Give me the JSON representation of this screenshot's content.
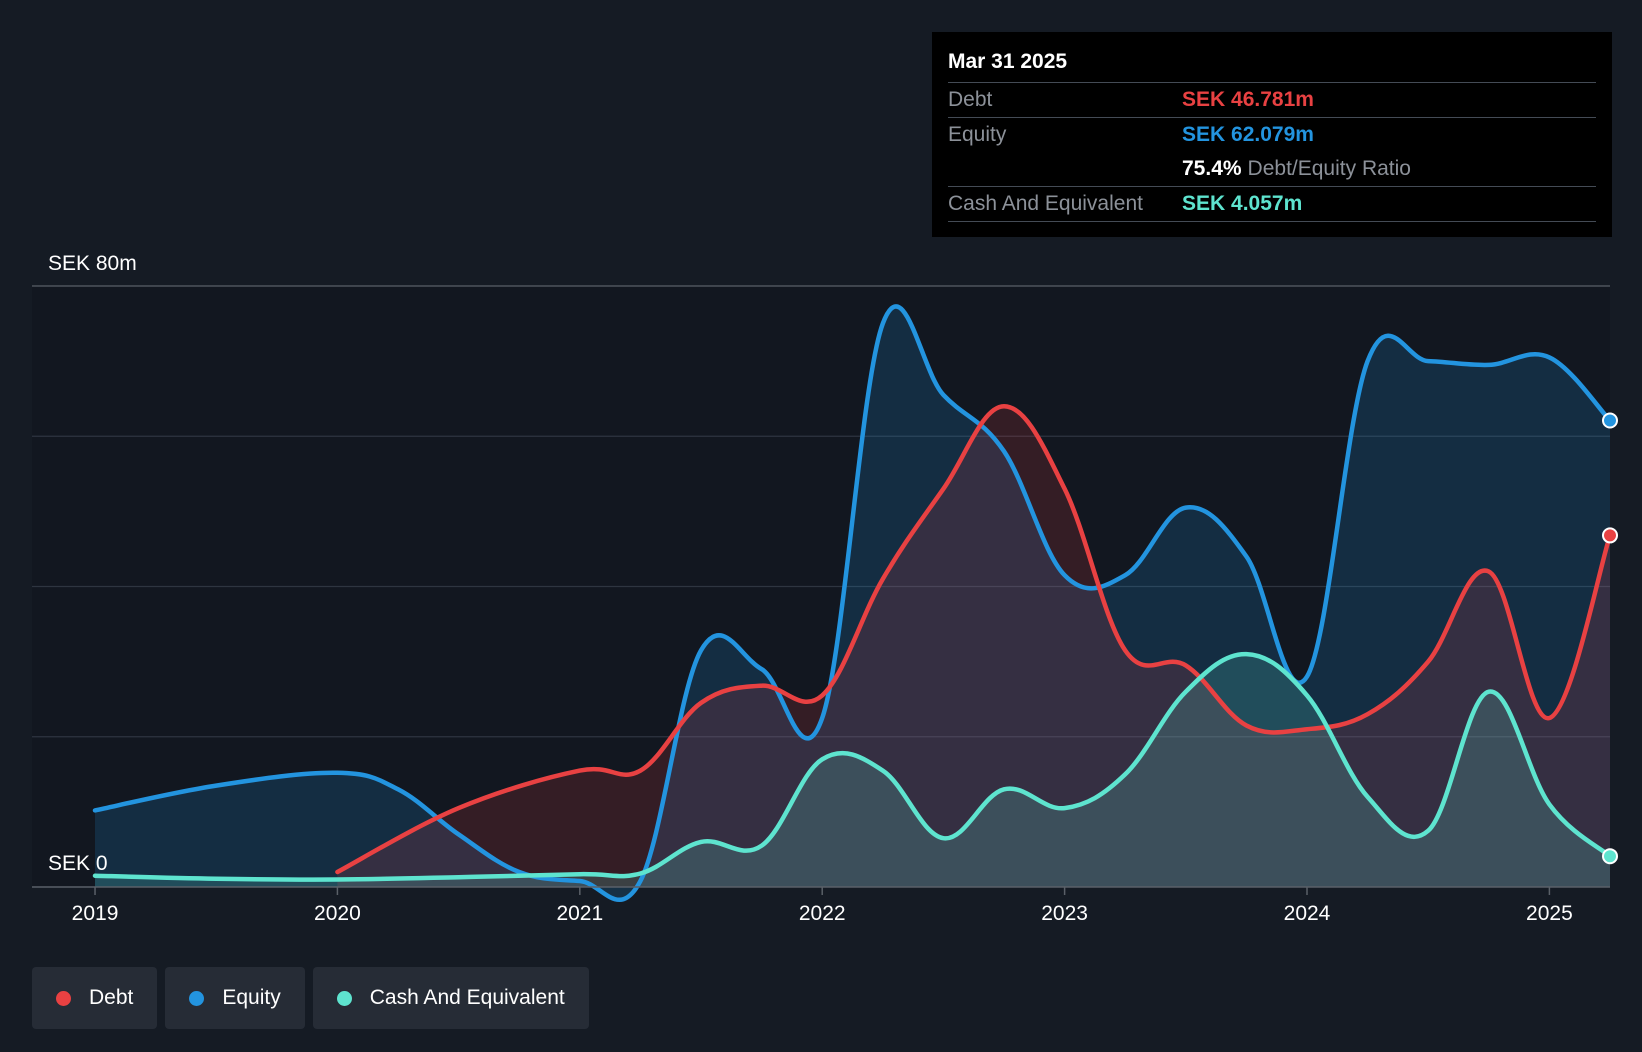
{
  "tooltip": {
    "date": "Mar 31 2025",
    "debt_label": "Debt",
    "debt_value": "SEK 46.781m",
    "equity_label": "Equity",
    "equity_value": "SEK 62.079m",
    "ratio_value": "75.4%",
    "ratio_label": "Debt/Equity Ratio",
    "cash_label": "Cash And Equivalent",
    "cash_value": "SEK 4.057m"
  },
  "legend": [
    {
      "label": "Debt",
      "color": "#e84142"
    },
    {
      "label": "Equity",
      "color": "#2394df"
    },
    {
      "label": "Cash And Equivalent",
      "color": "#5ee4cf"
    }
  ],
  "chart_data": {
    "type": "area",
    "ylim": [
      0,
      80
    ],
    "y_tick_labels": {
      "top": "SEK 80m",
      "bottom": "SEK 0"
    },
    "x_tick_labels": [
      "2019",
      "2020",
      "2021",
      "2022",
      "2023",
      "2024",
      "2025"
    ],
    "x_ticks": [
      2019,
      2020,
      2021,
      2022,
      2023,
      2024,
      2025
    ],
    "xlim": [
      2018.74,
      2025.25
    ],
    "grid": true,
    "legend_position": "bottom-left",
    "colors": {
      "debt": "#e84142",
      "equity": "#2394df",
      "cash": "#5ee4cf"
    },
    "series": [
      {
        "name": "Debt",
        "x": [
          2020.0,
          2020.5,
          2021.0,
          2021.25,
          2021.5,
          2021.75,
          2022.0,
          2022.25,
          2022.5,
          2022.75,
          2023.0,
          2023.25,
          2023.5,
          2023.75,
          2024.0,
          2024.25,
          2024.5,
          2024.75,
          2025.0,
          2025.25
        ],
        "values": [
          2.0,
          10.5,
          15.5,
          15.5,
          24.5,
          26.8,
          25.5,
          41.0,
          53.0,
          64.0,
          53.0,
          31.5,
          29.5,
          21.5,
          21.0,
          23.0,
          30.0,
          42.0,
          22.5,
          46.8
        ]
      },
      {
        "name": "Equity",
        "x": [
          2019.0,
          2019.5,
          2020.0,
          2020.25,
          2020.5,
          2020.75,
          2021.0,
          2021.25,
          2021.5,
          2021.75,
          2022.0,
          2022.25,
          2022.5,
          2022.75,
          2023.0,
          2023.25,
          2023.5,
          2023.75,
          2024.0,
          2024.25,
          2024.5,
          2024.75,
          2025.0,
          2025.25
        ],
        "values": [
          10.2,
          13.5,
          15.2,
          13.0,
          7.0,
          2.0,
          0.8,
          0.8,
          31.5,
          29.0,
          22.5,
          75.0,
          65.5,
          58.0,
          41.5,
          41.5,
          50.5,
          44.0,
          28.0,
          70.0,
          70.0,
          69.5,
          70.5,
          62.1
        ]
      },
      {
        "name": "Cash And Equivalent",
        "x": [
          2019.0,
          2019.5,
          2020.0,
          2020.5,
          2021.0,
          2021.25,
          2021.5,
          2021.75,
          2022.0,
          2022.25,
          2022.5,
          2022.75,
          2023.0,
          2023.25,
          2023.5,
          2023.75,
          2024.0,
          2024.25,
          2024.5,
          2024.75,
          2025.0,
          2025.25
        ],
        "values": [
          1.5,
          1.1,
          1.0,
          1.3,
          1.7,
          1.8,
          6.0,
          5.5,
          17.0,
          15.5,
          6.5,
          13.0,
          10.5,
          15.0,
          26.0,
          31.0,
          25.5,
          12.0,
          7.5,
          26.0,
          11.0,
          4.1
        ]
      }
    ]
  }
}
